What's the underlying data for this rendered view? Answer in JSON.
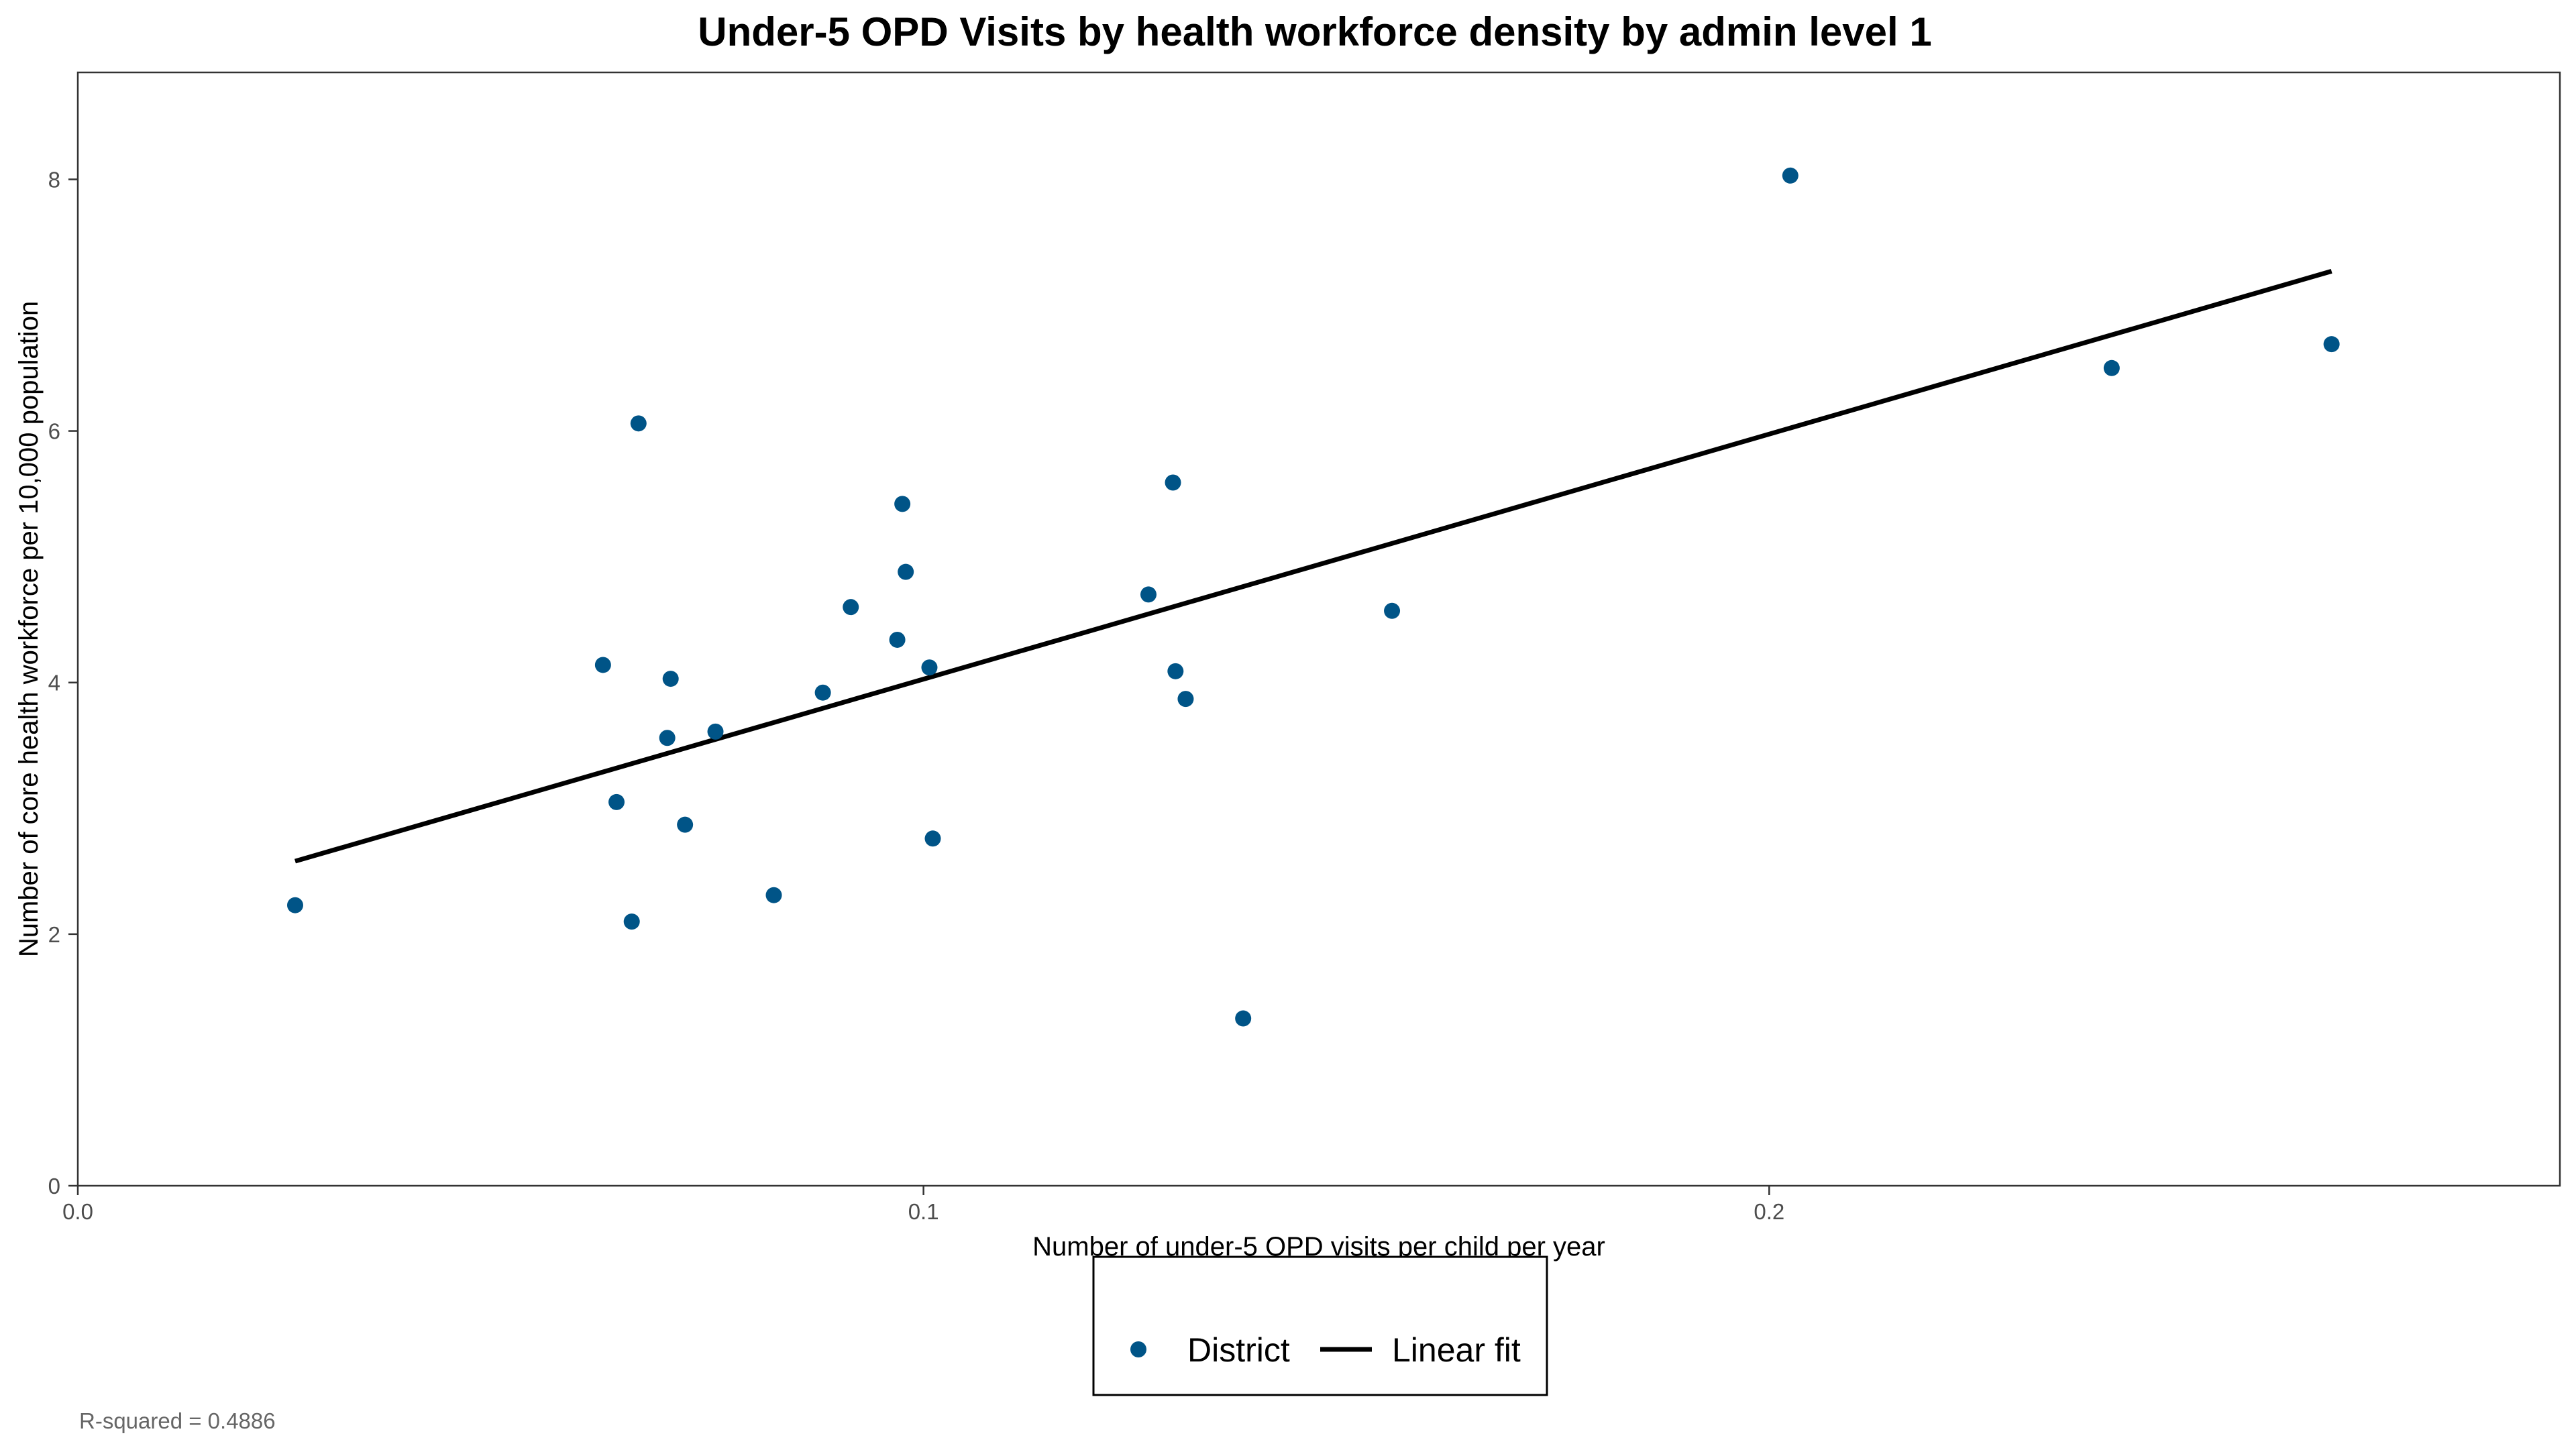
{
  "chart_data": {
    "type": "scatter",
    "title": "Under-5 OPD Visits by health workforce density by admin level 1",
    "xlabel": "Number of under-5 OPD visits per child per year",
    "ylabel": "Number of core health workforce per 10,000 population",
    "xlim": [
      0,
      0.2935
    ],
    "ylim": [
      0,
      8.85
    ],
    "x_ticks": [
      0,
      0.1,
      0.2
    ],
    "x_tick_labels": [
      "0.0",
      "0.1",
      "0.2"
    ],
    "y_ticks": [
      0,
      2,
      4,
      6,
      8
    ],
    "y_tick_labels": [
      "0",
      "2",
      "4",
      "6",
      "8"
    ],
    "grid": false,
    "legend_position": "bottom",
    "series": [
      {
        "name": "District",
        "kind": "points",
        "color": "#005487",
        "x": [
          0.0257,
          0.0621,
          0.0637,
          0.0663,
          0.0655,
          0.0697,
          0.0701,
          0.0718,
          0.0754,
          0.0823,
          0.0881,
          0.0914,
          0.0969,
          0.0975,
          0.0979,
          0.1007,
          0.1011,
          0.1266,
          0.1295,
          0.1298,
          0.131,
          0.1378,
          0.1554,
          0.2025,
          0.2405,
          0.2665
        ],
        "y": [
          2.23,
          4.14,
          3.05,
          6.06,
          2.1,
          3.56,
          4.03,
          2.87,
          3.61,
          2.31,
          3.92,
          4.6,
          4.34,
          5.42,
          4.88,
          4.12,
          2.76,
          4.7,
          5.59,
          4.09,
          3.87,
          1.33,
          4.57,
          8.03,
          6.5,
          6.69
        ]
      },
      {
        "name": "Linear fit",
        "kind": "line",
        "color": "#000000",
        "x": [
          0.0257,
          0.2665
        ],
        "y": [
          2.58,
          7.27
        ]
      }
    ],
    "annotation": "R-squared = 0.4886"
  }
}
